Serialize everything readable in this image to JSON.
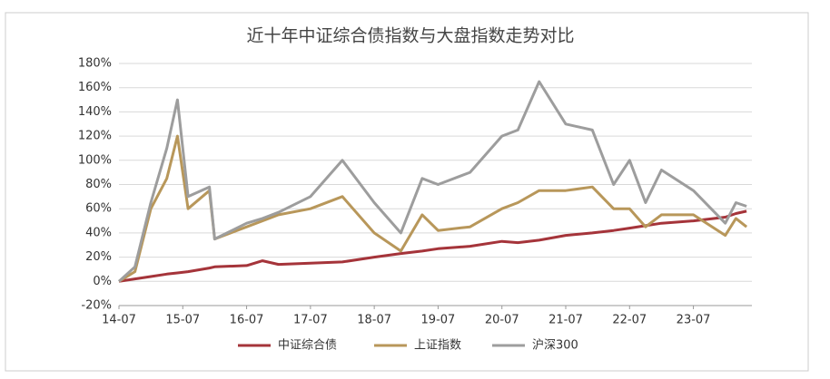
{
  "chart_data": {
    "type": "line",
    "title": "近十年中证综合债指数与大盘指数走势对比",
    "x": [
      "14-07",
      "14-10",
      "15-01",
      "15-04",
      "15-06",
      "15-08",
      "15-12",
      "16-01",
      "16-07",
      "16-10",
      "17-01",
      "17-07",
      "18-01",
      "18-07",
      "18-12",
      "19-04",
      "19-07",
      "20-01",
      "20-07",
      "20-10",
      "21-02",
      "21-07",
      "21-12",
      "22-04",
      "22-07",
      "22-10",
      "23-01",
      "23-07",
      "24-01",
      "24-03",
      "24-05"
    ],
    "xlim": [
      "14-07",
      "24-06"
    ],
    "xticks": [
      "14-07",
      "15-07",
      "16-07",
      "17-07",
      "18-07",
      "19-07",
      "20-07",
      "21-07",
      "22-07",
      "23-07"
    ],
    "ylim": [
      -20,
      180
    ],
    "yticks": [
      {
        "value": -20,
        "label": "-20%"
      },
      {
        "value": 0,
        "label": "0%"
      },
      {
        "value": 20,
        "label": "20%"
      },
      {
        "value": 40,
        "label": "40%"
      },
      {
        "value": 60,
        "label": "60%"
      },
      {
        "value": 80,
        "label": "80%"
      },
      {
        "value": 100,
        "label": "100%"
      },
      {
        "value": 120,
        "label": "120%"
      },
      {
        "value": 140,
        "label": "140%"
      },
      {
        "value": 160,
        "label": "160%"
      },
      {
        "value": 180,
        "label": "180%"
      }
    ],
    "grid": true,
    "legend": "bottom",
    "series": [
      {
        "name": "中证综合债",
        "color": "#a5343a",
        "values": [
          0,
          2,
          4,
          6,
          7,
          8,
          11,
          12,
          13,
          17,
          14,
          15,
          16,
          20,
          23,
          25,
          27,
          29,
          33,
          32,
          34,
          38,
          40,
          42,
          44,
          46,
          48,
          50,
          53,
          56,
          58
        ]
      },
      {
        "name": "上证指数",
        "color": "#b8975a",
        "values": [
          0,
          8,
          60,
          85,
          120,
          60,
          75,
          35,
          45,
          50,
          55,
          60,
          70,
          40,
          25,
          55,
          42,
          45,
          60,
          65,
          75,
          75,
          78,
          60,
          60,
          45,
          55,
          55,
          38,
          52,
          45
        ]
      },
      {
        "name": "沪深300",
        "color": "#9d9d9d",
        "values": [
          0,
          12,
          65,
          110,
          150,
          70,
          78,
          35,
          48,
          52,
          57,
          70,
          100,
          65,
          40,
          85,
          80,
          90,
          120,
          125,
          165,
          130,
          125,
          80,
          100,
          65,
          92,
          75,
          48,
          65,
          62
        ]
      }
    ]
  }
}
